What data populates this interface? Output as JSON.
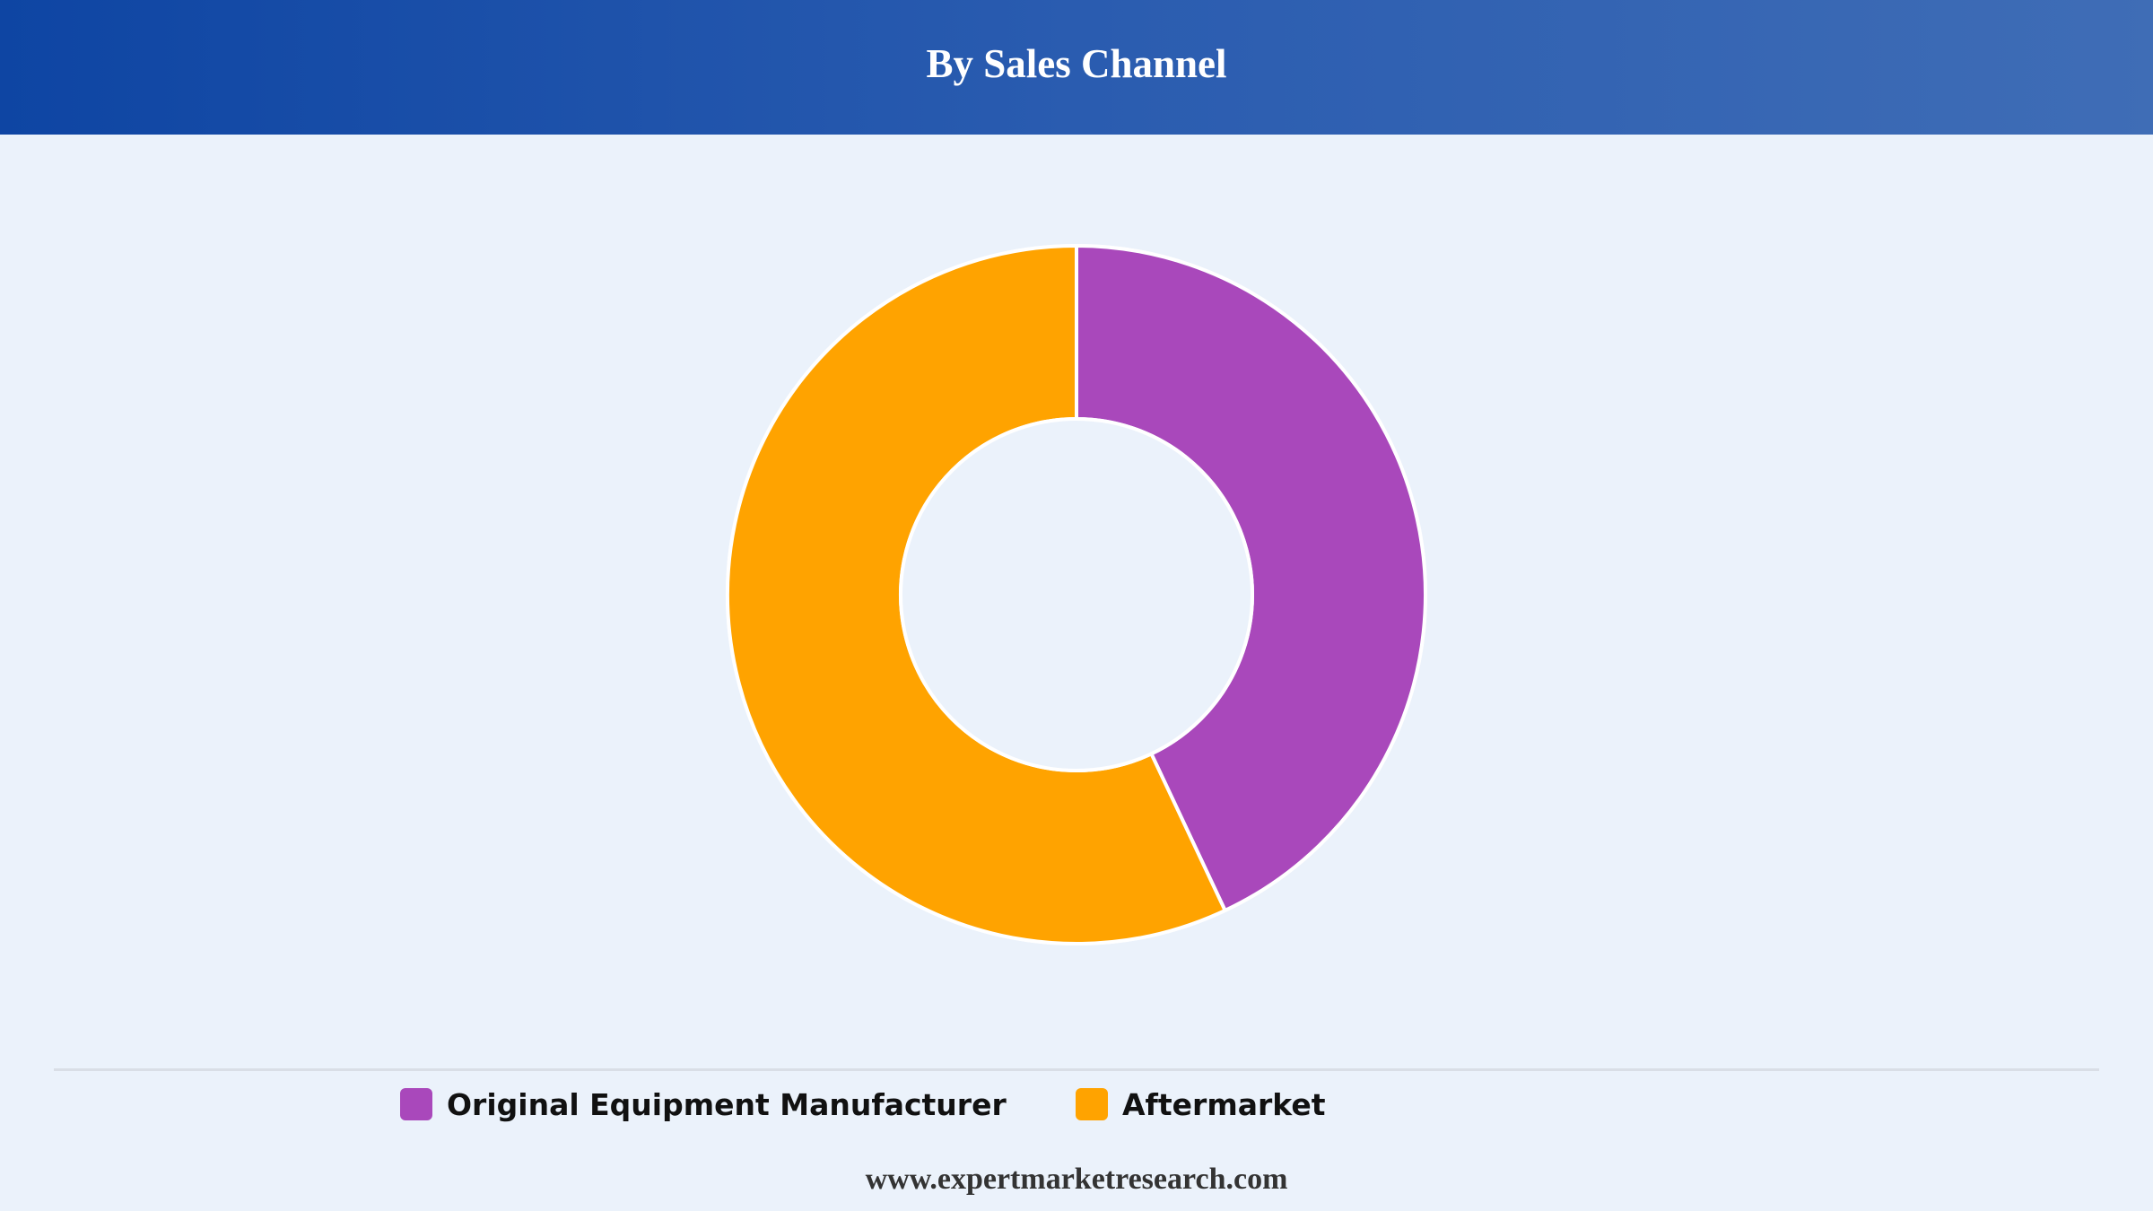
{
  "header": {
    "title": "By Sales Channel"
  },
  "chart_data": {
    "type": "pie",
    "variant": "donut",
    "title": "By Sales Channel",
    "categories": [
      "Original Equipment Manufacturer",
      "Aftermarket"
    ],
    "values": [
      43,
      57
    ],
    "unit": "%",
    "colors": [
      "#a948bb",
      "#ffa300"
    ],
    "start_angle": "12 o'clock",
    "direction": "clockwise",
    "legend_position": "bottom"
  },
  "legend": {
    "items": [
      {
        "label": "Original Equipment Manufacturer",
        "color": "#a948bb"
      },
      {
        "label": "Aftermarket",
        "color": "#ffa300"
      }
    ]
  },
  "footer": {
    "source": "www.expertmarketresearch.com"
  }
}
